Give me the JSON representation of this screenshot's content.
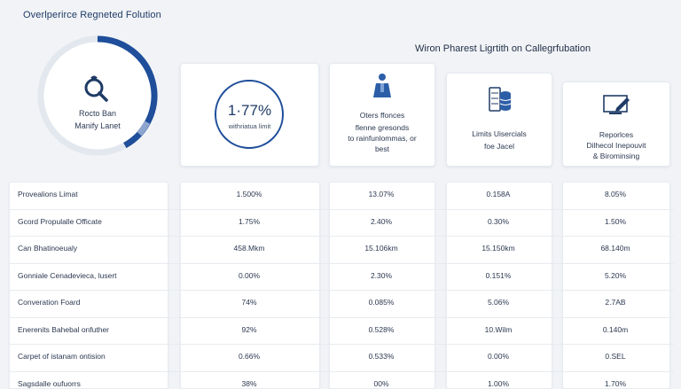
{
  "header": {
    "title": "Overlperirce Regneted Folution",
    "section_title": "Wiron Pharest Ligrtith on Callegrfubation"
  },
  "gauge": {
    "icon": "search-icon",
    "line1": "Rocto Ban",
    "line2": "Manify Lanet",
    "progress": 0.42,
    "accent_color": "#1f4e9a"
  },
  "cards": [
    {
      "metric": "1·77%",
      "caption": "withriatua limit"
    },
    {
      "icon": "person-icon",
      "lines": [
        "Oters ffonces",
        "flenne gresonds",
        "to rainfunlommas, or",
        "best"
      ]
    },
    {
      "icon": "database-icon",
      "lines": [
        "Limits Uisercials",
        "foe Jacel"
      ]
    },
    {
      "icon": "monitor-edit-icon",
      "lines": [
        "Reporlces",
        "Dilhecol Inepouvit",
        "& Birominsing"
      ]
    }
  ],
  "table": {
    "rows": [
      {
        "label": "Provealions Limat",
        "values": [
          "1.500%",
          "13.07%",
          "0.158A",
          "8.05%"
        ]
      },
      {
        "label": "Gcord Propulalle Officate",
        "values": [
          "1.75%",
          "2.40%",
          "0.30%",
          "1.50%"
        ]
      },
      {
        "label": "Can Bhatinoeualy",
        "values": [
          "458.Mkm",
          "15.106km",
          "15.150km",
          "68.140m"
        ]
      },
      {
        "label": "Gonniale Cenadevieca, lusert",
        "values": [
          "0.00%",
          "2.30%",
          "0.151%",
          "5.20%"
        ]
      },
      {
        "label": "Converation Foard",
        "values": [
          "74%",
          "0.085%",
          "5.06%",
          "2.7AB"
        ]
      },
      {
        "label": "Enerenits Bahebal onfuther",
        "values": [
          "92%",
          "0.528%",
          "10.Wilm",
          "0.140m"
        ]
      },
      {
        "label": "Carpet of istanam ontision",
        "values": [
          "0.66%",
          "0.533%",
          "0.00%",
          "0.SEL"
        ]
      },
      {
        "label": "Sagsdalle oufuorrs",
        "values": [
          "38%",
          "00%",
          "1.00%",
          "1.70%"
        ]
      }
    ]
  }
}
